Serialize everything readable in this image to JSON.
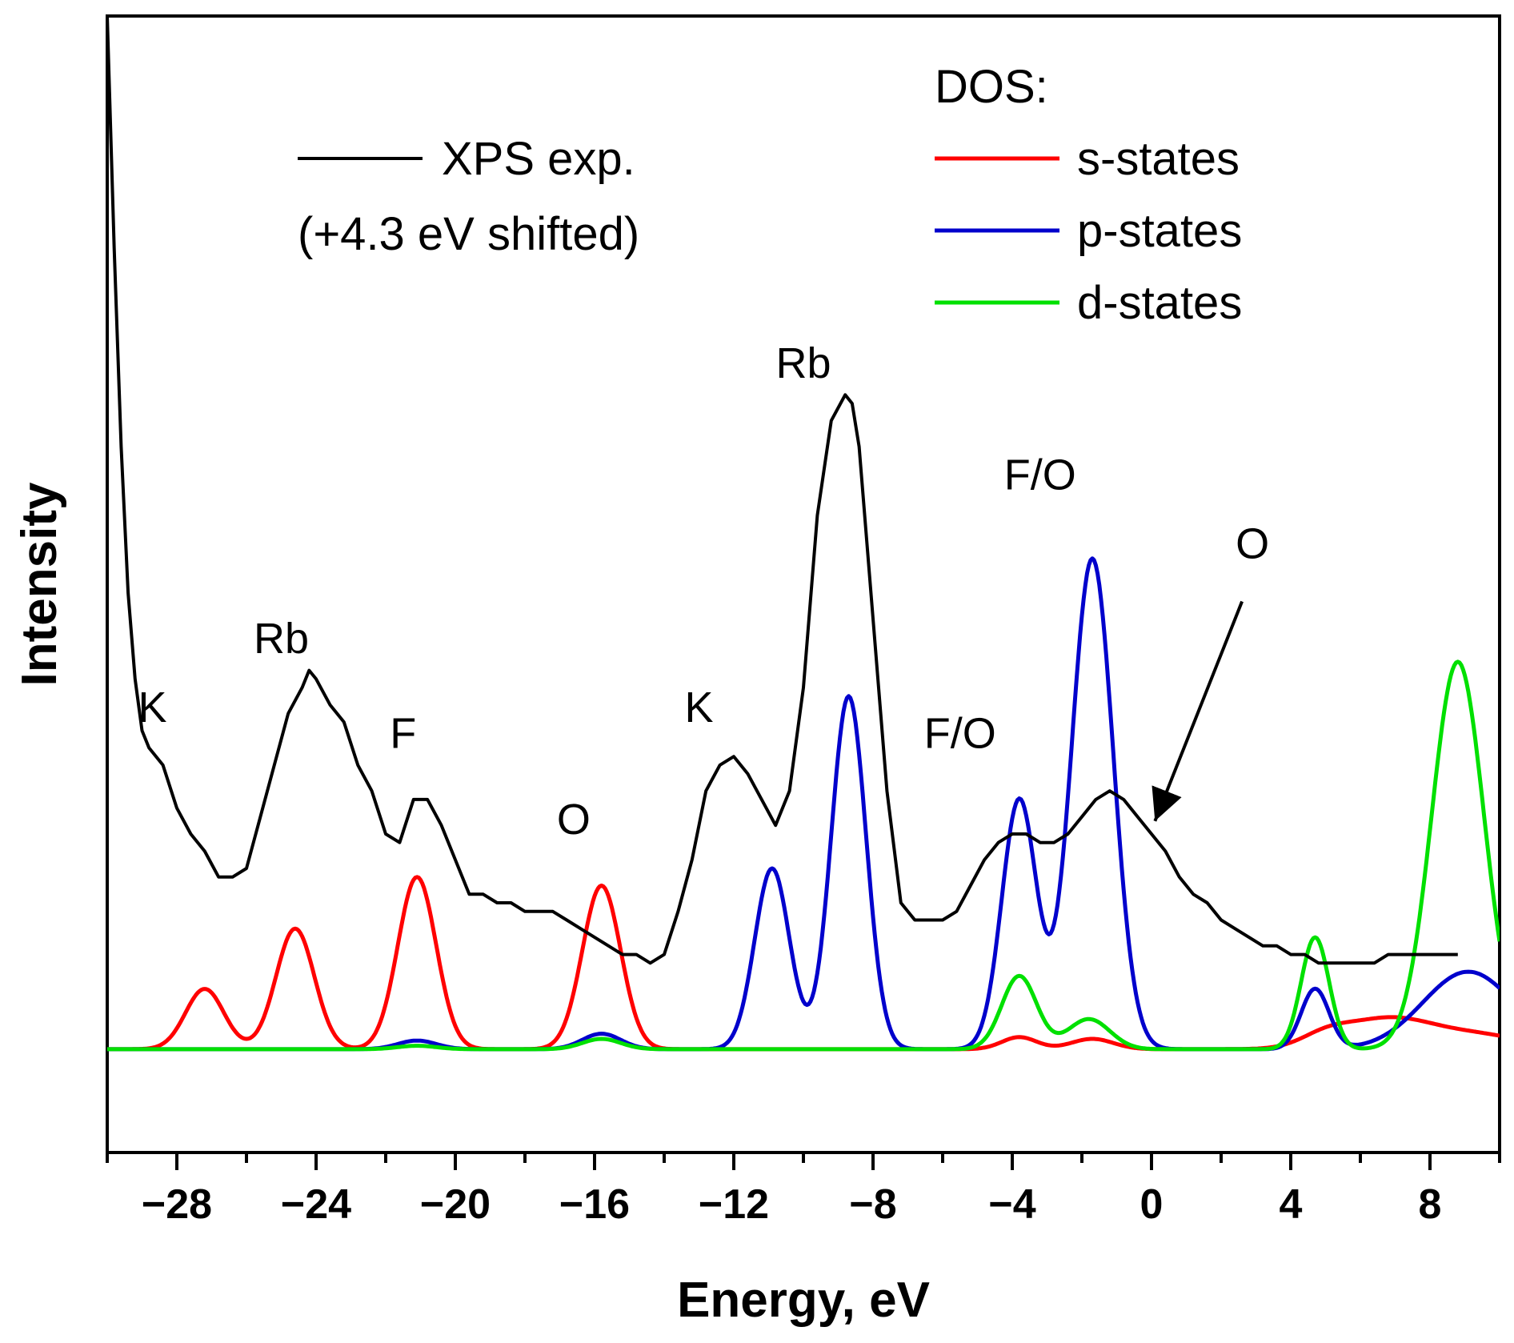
{
  "chart_data": {
    "type": "line",
    "xlabel": "Energy, eV",
    "ylabel": "Intensity",
    "xlim": [
      -30,
      10
    ],
    "ylim": [
      -0.12,
      1.2
    ],
    "x_ticks": [
      -28,
      -24,
      -20,
      -16,
      -12,
      -8,
      -4,
      0,
      4,
      8
    ],
    "x_tick_labels": [
      "−28",
      "−24",
      "−20",
      "−16",
      "−12",
      "−8",
      "−4",
      "0",
      "4",
      "8"
    ],
    "x_minor_step": 2,
    "y_ticks_shown": false,
    "grid": false,
    "legend": {
      "xps_label": "XPS exp.",
      "xps_note": "(+4.3 eV shifted)",
      "dos_title": "DOS:",
      "entries": [
        "s-states",
        "p-states",
        "d-states"
      ]
    },
    "series": [
      {
        "name": "XPS exp.",
        "color": "#000000",
        "x": [
          -30,
          -29.8,
          -29.6,
          -29.4,
          -29.2,
          -29.0,
          -28.8,
          -28.4,
          -28.0,
          -27.6,
          -27.2,
          -26.8,
          -26.4,
          -26.0,
          -25.6,
          -25.2,
          -24.8,
          -24.4,
          -24.2,
          -24.0,
          -23.6,
          -23.2,
          -22.8,
          -22.4,
          -22.0,
          -21.6,
          -21.2,
          -20.8,
          -20.4,
          -20.0,
          -19.6,
          -19.2,
          -18.8,
          -18.4,
          -18.0,
          -17.6,
          -17.2,
          -16.8,
          -16.4,
          -16.0,
          -15.6,
          -15.2,
          -14.8,
          -14.4,
          -14.0,
          -13.6,
          -13.2,
          -12.8,
          -12.4,
          -12.0,
          -11.6,
          -11.2,
          -10.8,
          -10.4,
          -10.0,
          -9.6,
          -9.2,
          -8.8,
          -8.6,
          -8.4,
          -8.0,
          -7.6,
          -7.2,
          -6.8,
          -6.4,
          -6.0,
          -5.6,
          -5.2,
          -4.8,
          -4.4,
          -4.0,
          -3.6,
          -3.2,
          -2.8,
          -2.4,
          -2.0,
          -1.6,
          -1.2,
          -0.8,
          -0.4,
          0.0,
          0.4,
          0.8,
          1.2,
          1.6,
          2.0,
          2.4,
          2.8,
          3.2,
          3.6,
          4.0,
          4.4,
          4.8,
          5.2,
          5.6,
          6.0,
          6.4,
          6.8,
          7.2,
          7.6,
          8.0,
          8.4,
          8.8
        ],
        "values": [
          1.2,
          0.93,
          0.7,
          0.53,
          0.43,
          0.37,
          0.35,
          0.33,
          0.28,
          0.25,
          0.23,
          0.2,
          0.2,
          0.21,
          0.27,
          0.33,
          0.39,
          0.42,
          0.44,
          0.43,
          0.4,
          0.38,
          0.33,
          0.3,
          0.25,
          0.24,
          0.29,
          0.29,
          0.26,
          0.22,
          0.18,
          0.18,
          0.17,
          0.17,
          0.16,
          0.16,
          0.16,
          0.15,
          0.14,
          0.13,
          0.12,
          0.11,
          0.11,
          0.1,
          0.11,
          0.16,
          0.22,
          0.3,
          0.33,
          0.34,
          0.32,
          0.29,
          0.26,
          0.3,
          0.42,
          0.62,
          0.73,
          0.76,
          0.75,
          0.7,
          0.5,
          0.3,
          0.17,
          0.15,
          0.15,
          0.15,
          0.16,
          0.19,
          0.22,
          0.24,
          0.25,
          0.25,
          0.24,
          0.24,
          0.25,
          0.27,
          0.29,
          0.3,
          0.29,
          0.27,
          0.25,
          0.23,
          0.2,
          0.18,
          0.17,
          0.15,
          0.14,
          0.13,
          0.12,
          0.12,
          0.11,
          0.11,
          0.1,
          0.1,
          0.1,
          0.1,
          0.1,
          0.11,
          0.11,
          0.11,
          0.11,
          0.11,
          0.11
        ]
      },
      {
        "name": "s-states",
        "color": "#ff0000",
        "x_range": [
          -30,
          10
        ],
        "peaks": [
          {
            "center": -27.2,
            "height": 0.07,
            "width": 0.55
          },
          {
            "center": -24.6,
            "height": 0.14,
            "width": 0.55
          },
          {
            "center": -21.1,
            "height": 0.2,
            "width": 0.55
          },
          {
            "center": -15.8,
            "height": 0.19,
            "width": 0.55
          },
          {
            "center": -3.8,
            "height": 0.014,
            "width": 0.5
          },
          {
            "center": -1.7,
            "height": 0.012,
            "width": 0.6
          },
          {
            "center": 5.0,
            "height": 0.012,
            "width": 0.7
          },
          {
            "center": 6.8,
            "height": 0.035,
            "width": 1.3
          },
          {
            "center": 9.5,
            "height": 0.015,
            "width": 1.3
          }
        ]
      },
      {
        "name": "p-states",
        "color": "#0000cc",
        "x_range": [
          -30,
          10
        ],
        "peaks": [
          {
            "center": -21.1,
            "height": 0.01,
            "width": 0.55
          },
          {
            "center": -15.8,
            "height": 0.018,
            "width": 0.55
          },
          {
            "center": -10.9,
            "height": 0.21,
            "width": 0.5
          },
          {
            "center": -8.7,
            "height": 0.41,
            "width": 0.5
          },
          {
            "center": -3.8,
            "height": 0.29,
            "width": 0.5
          },
          {
            "center": -1.7,
            "height": 0.57,
            "width": 0.6
          },
          {
            "center": 4.7,
            "height": 0.07,
            "width": 0.4
          },
          {
            "center": 9.1,
            "height": 0.09,
            "width": 1.3
          }
        ]
      },
      {
        "name": "d-states",
        "color": "#00e000",
        "x_range": [
          -30,
          10
        ],
        "peaks": [
          {
            "center": -21.1,
            "height": 0.004,
            "width": 0.55
          },
          {
            "center": -15.8,
            "height": 0.012,
            "width": 0.55
          },
          {
            "center": -3.8,
            "height": 0.085,
            "width": 0.5
          },
          {
            "center": -1.8,
            "height": 0.035,
            "width": 0.6
          },
          {
            "center": 4.7,
            "height": 0.13,
            "width": 0.4
          },
          {
            "center": 8.8,
            "height": 0.45,
            "width": 0.75
          }
        ]
      }
    ],
    "annotations": [
      {
        "text": "K",
        "x": -28.7,
        "y": 0.38
      },
      {
        "text": "Rb",
        "x": -25.0,
        "y": 0.46
      },
      {
        "text": "F",
        "x": -21.5,
        "y": 0.35
      },
      {
        "text": "O",
        "x": -16.6,
        "y": 0.25
      },
      {
        "text": "K",
        "x": -13.0,
        "y": 0.38
      },
      {
        "text": "Rb",
        "x": -10.0,
        "y": 0.78
      },
      {
        "text": "F/O",
        "x": -5.5,
        "y": 0.35
      },
      {
        "text": "F/O",
        "x": -3.2,
        "y": 0.65
      },
      {
        "text": "O",
        "x": 2.9,
        "y": 0.57
      }
    ],
    "arrow": {
      "from": [
        2.6,
        0.52
      ],
      "to": [
        0.1,
        0.265
      ]
    }
  }
}
